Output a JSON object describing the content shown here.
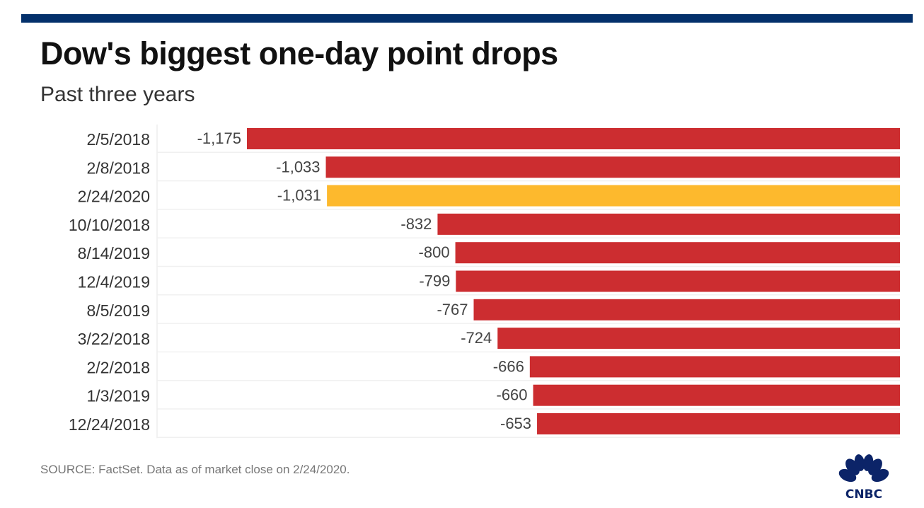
{
  "header": {
    "title": "Dow's biggest one-day point drops",
    "subtitle": "Past three years"
  },
  "footer": {
    "source": "SOURCE: FactSet. Data as of market close on 2/24/2020.",
    "logo_text": "CNBC"
  },
  "colors": {
    "banner": "#03306b",
    "bar_default": "#cc2d30",
    "bar_highlight": "#fdb92d",
    "logo": "#0c2468"
  },
  "chart_data": {
    "type": "bar",
    "orientation": "horizontal",
    "title": "Dow's biggest one-day point drops",
    "subtitle": "Past three years",
    "xlabel": "",
    "ylabel": "",
    "grid": false,
    "categories": [
      "2/5/2018",
      "2/8/2018",
      "2/24/2020",
      "10/10/2018",
      "8/14/2019",
      "12/4/2019",
      "8/5/2019",
      "3/22/2018",
      "2/2/2018",
      "1/3/2019",
      "12/24/2018"
    ],
    "values": [
      -1175,
      -1033,
      -1031,
      -832,
      -800,
      -799,
      -767,
      -724,
      -666,
      -660,
      -653
    ],
    "value_labels": [
      "-1,175",
      "-1,033",
      "-1,031",
      "-832",
      "-800",
      "-799",
      "-767",
      "-724",
      "-666",
      "-660",
      "-653"
    ],
    "highlight": [
      "2/24/2020"
    ],
    "xlim": [
      -1175,
      0
    ]
  }
}
